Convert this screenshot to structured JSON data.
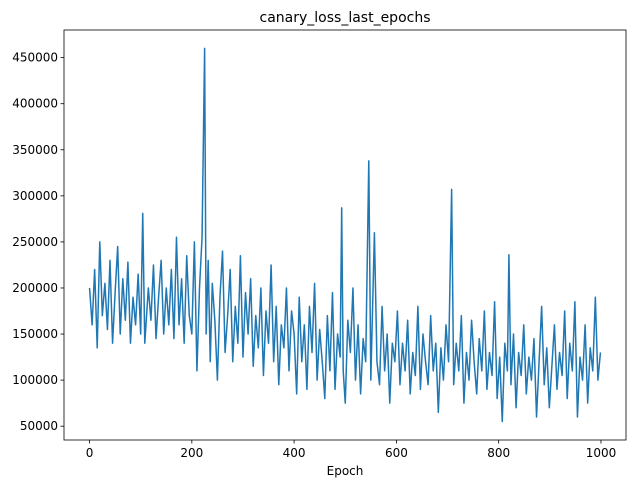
{
  "chart_data": {
    "type": "line",
    "title": "canary_loss_last_epochs",
    "x_label": "Epoch",
    "xlim": [
      -49.95,
      1048.95
    ],
    "xticks": [
      0,
      200,
      400,
      600,
      800,
      1000
    ],
    "ylim": [
      35000,
      480000
    ],
    "yticks": [
      50000,
      100000,
      150000,
      200000,
      250000,
      300000,
      350000,
      400000,
      450000
    ],
    "grid": false,
    "color": "#1f77b4",
    "x": [
      0,
      5,
      10,
      15,
      20,
      25,
      30,
      35,
      40,
      45,
      50,
      55,
      60,
      65,
      70,
      75,
      80,
      85,
      90,
      95,
      100,
      104,
      108,
      115,
      120,
      125,
      130,
      135,
      140,
      145,
      150,
      155,
      160,
      165,
      170,
      175,
      180,
      185,
      190,
      195,
      200,
      205,
      210,
      215,
      220,
      225,
      228,
      232,
      236,
      240,
      245,
      250,
      255,
      260,
      265,
      270,
      275,
      280,
      285,
      290,
      295,
      300,
      305,
      310,
      315,
      320,
      325,
      330,
      335,
      340,
      345,
      350,
      355,
      360,
      365,
      370,
      375,
      380,
      385,
      390,
      395,
      400,
      405,
      410,
      415,
      420,
      425,
      430,
      435,
      440,
      445,
      450,
      455,
      460,
      465,
      470,
      475,
      480,
      485,
      490,
      493,
      496,
      500,
      505,
      510,
      515,
      520,
      525,
      530,
      535,
      540,
      546,
      550,
      557,
      562,
      567,
      572,
      577,
      582,
      587,
      592,
      597,
      602,
      607,
      612,
      617,
      622,
      627,
      632,
      637,
      642,
      647,
      652,
      657,
      662,
      667,
      672,
      677,
      682,
      687,
      692,
      697,
      702,
      708,
      712,
      717,
      722,
      727,
      732,
      737,
      742,
      747,
      752,
      757,
      762,
      767,
      772,
      777,
      782,
      787,
      792,
      797,
      802,
      807,
      812,
      817,
      820,
      824,
      829,
      834,
      839,
      844,
      849,
      854,
      859,
      864,
      869,
      874,
      879,
      884,
      889,
      894,
      899,
      904,
      909,
      914,
      919,
      924,
      929,
      934,
      939,
      944,
      949,
      954,
      959,
      964,
      969,
      974,
      979,
      984,
      989,
      994,
      999
    ],
    "values": [
      200000,
      160000,
      220000,
      135000,
      250000,
      170000,
      205000,
      155000,
      230000,
      140000,
      195000,
      245000,
      150000,
      210000,
      165000,
      228000,
      140000,
      190000,
      160000,
      215000,
      150000,
      281000,
      140000,
      200000,
      165000,
      225000,
      145000,
      190000,
      230000,
      150000,
      200000,
      160000,
      220000,
      145000,
      255000,
      160000,
      210000,
      140000,
      235000,
      170000,
      150000,
      250000,
      110000,
      200000,
      255000,
      460000,
      150000,
      230000,
      120000,
      205000,
      165000,
      100000,
      190000,
      240000,
      130000,
      170000,
      220000,
      120000,
      180000,
      140000,
      235000,
      125000,
      195000,
      150000,
      210000,
      115000,
      170000,
      135000,
      200000,
      105000,
      175000,
      140000,
      225000,
      120000,
      180000,
      95000,
      160000,
      135000,
      200000,
      110000,
      175000,
      150000,
      85000,
      190000,
      120000,
      160000,
      90000,
      180000,
      130000,
      205000,
      100000,
      155000,
      120000,
      80000,
      170000,
      110000,
      195000,
      90000,
      150000,
      125000,
      287000,
      110000,
      75000,
      165000,
      130000,
      200000,
      100000,
      160000,
      85000,
      145000,
      120000,
      338000,
      100000,
      260000,
      120000,
      95000,
      180000,
      110000,
      150000,
      75000,
      140000,
      120000,
      175000,
      95000,
      140000,
      110000,
      165000,
      85000,
      130000,
      105000,
      180000,
      90000,
      150000,
      120000,
      95000,
      170000,
      110000,
      140000,
      65000,
      135000,
      100000,
      160000,
      120000,
      307000,
      95000,
      140000,
      110000,
      170000,
      75000,
      130000,
      100000,
      165000,
      120000,
      85000,
      145000,
      110000,
      175000,
      90000,
      130000,
      105000,
      185000,
      80000,
      125000,
      55000,
      140000,
      110000,
      236000,
      95000,
      150000,
      70000,
      130000,
      105000,
      160000,
      85000,
      125000,
      100000,
      145000,
      60000,
      120000,
      180000,
      95000,
      135000,
      70000,
      115000,
      160000,
      90000,
      130000,
      105000,
      175000,
      80000,
      140000,
      110000,
      185000,
      60000,
      125000,
      100000,
      160000,
      75000,
      135000,
      110000,
      190000,
      100000,
      130000
    ]
  }
}
